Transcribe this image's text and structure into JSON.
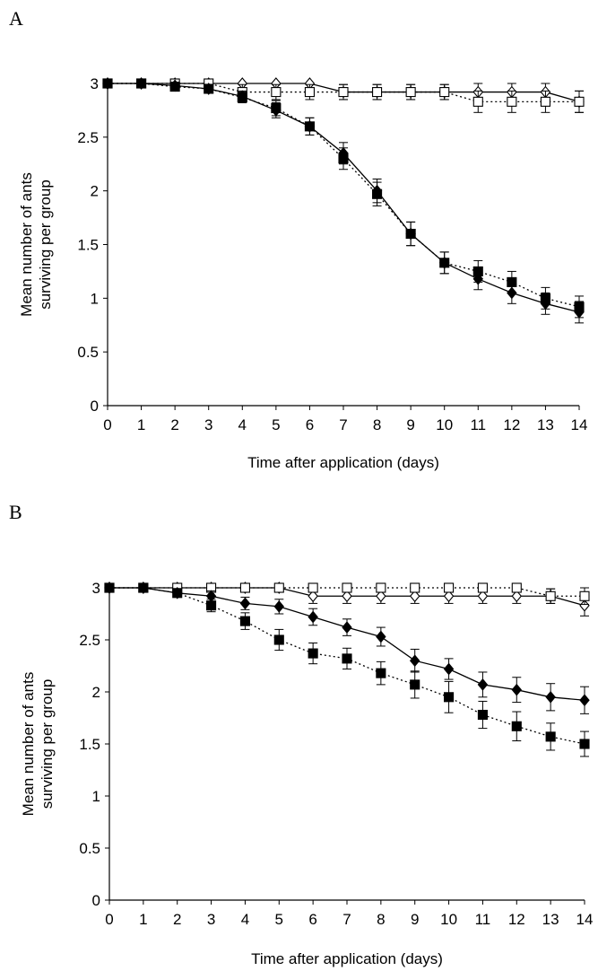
{
  "chart_data": [
    {
      "panel": "A",
      "type": "line",
      "xlabel": "Time after application (days)",
      "ylabel": [
        "Mean number of ants",
        "surviving per group"
      ],
      "xlim": [
        0,
        14
      ],
      "ylim": [
        0,
        3
      ],
      "x_ticks": [
        0,
        1,
        2,
        3,
        4,
        5,
        6,
        7,
        8,
        9,
        10,
        11,
        12,
        13,
        14
      ],
      "y_ticks": [
        0,
        0.5,
        1,
        1.5,
        2,
        2.5,
        3
      ],
      "grid": false,
      "x": [
        0,
        1,
        2,
        3,
        4,
        5,
        6,
        7,
        8,
        9,
        10,
        11,
        12,
        13,
        14
      ],
      "series": [
        {
          "marker": "diamond-open",
          "line": "solid",
          "values": [
            3,
            3,
            3,
            3,
            3,
            3,
            3,
            2.92,
            2.92,
            2.92,
            2.92,
            2.92,
            2.92,
            2.92,
            2.83
          ],
          "errors": [
            0,
            0,
            0,
            0,
            0,
            0,
            0,
            0.07,
            0.07,
            0.07,
            0.07,
            0.08,
            0.08,
            0.08,
            0.1
          ]
        },
        {
          "marker": "square-open",
          "line": "dotted",
          "values": [
            3,
            3,
            3,
            3,
            2.92,
            2.92,
            2.92,
            2.92,
            2.92,
            2.92,
            2.92,
            2.83,
            2.83,
            2.83,
            2.83
          ],
          "errors": [
            0,
            0,
            0,
            0,
            0.07,
            0.07,
            0.07,
            0.07,
            0.07,
            0.07,
            0.07,
            0.1,
            0.1,
            0.1,
            0.1
          ]
        },
        {
          "marker": "diamond-filled",
          "line": "solid",
          "values": [
            3,
            3,
            2.98,
            2.95,
            2.88,
            2.75,
            2.6,
            2.35,
            2,
            1.6,
            1.33,
            1.18,
            1.05,
            0.95,
            0.87
          ],
          "errors": [
            0,
            0,
            0.03,
            0.04,
            0.05,
            0.07,
            0.08,
            0.1,
            0.11,
            0.11,
            0.1,
            0.1,
            0.1,
            0.1,
            0.1
          ]
        },
        {
          "marker": "square-filled",
          "line": "dotted",
          "values": [
            3,
            3,
            2.97,
            2.95,
            2.87,
            2.77,
            2.6,
            2.3,
            1.97,
            1.6,
            1.33,
            1.25,
            1.15,
            1.0,
            0.92
          ],
          "errors": [
            0,
            0,
            0.03,
            0.04,
            0.05,
            0.07,
            0.08,
            0.1,
            0.11,
            0.11,
            0.1,
            0.1,
            0.1,
            0.1,
            0.1
          ]
        }
      ]
    },
    {
      "panel": "B",
      "type": "line",
      "xlabel": "Time after application (days)",
      "ylabel": [
        "Mean number of ants",
        "surviving per group"
      ],
      "xlim": [
        0,
        14
      ],
      "ylim": [
        0,
        3
      ],
      "x_ticks": [
        0,
        1,
        2,
        3,
        4,
        5,
        6,
        7,
        8,
        9,
        10,
        11,
        12,
        13,
        14
      ],
      "y_ticks": [
        0,
        0.5,
        1,
        1.5,
        2,
        2.5,
        3
      ],
      "grid": false,
      "x": [
        0,
        1,
        2,
        3,
        4,
        5,
        6,
        7,
        8,
        9,
        10,
        11,
        12,
        13,
        14
      ],
      "series": [
        {
          "marker": "diamond-open",
          "line": "solid",
          "values": [
            3,
            3,
            3,
            3,
            3,
            3,
            2.92,
            2.92,
            2.92,
            2.92,
            2.92,
            2.92,
            2.92,
            2.92,
            2.83
          ],
          "errors": [
            0,
            0,
            0,
            0,
            0,
            0,
            0.07,
            0.07,
            0.07,
            0.07,
            0.07,
            0.07,
            0.07,
            0.07,
            0.1
          ]
        },
        {
          "marker": "square-open",
          "line": "dotted",
          "values": [
            3,
            3,
            3,
            3,
            3,
            3,
            3,
            3,
            3,
            3,
            3,
            3,
            3,
            2.92,
            2.92
          ],
          "errors": [
            0,
            0,
            0,
            0,
            0,
            0,
            0,
            0,
            0,
            0,
            0,
            0,
            0,
            0.07,
            0.08
          ]
        },
        {
          "marker": "diamond-filled",
          "line": "solid",
          "values": [
            3,
            3,
            2.95,
            2.92,
            2.85,
            2.82,
            2.72,
            2.62,
            2.53,
            2.3,
            2.22,
            2.07,
            2.02,
            1.95,
            1.92
          ],
          "errors": [
            0,
            0,
            0.04,
            0.05,
            0.06,
            0.07,
            0.08,
            0.08,
            0.09,
            0.11,
            0.1,
            0.12,
            0.12,
            0.13,
            0.13
          ]
        },
        {
          "marker": "square-filled",
          "line": "dotted",
          "values": [
            3,
            3,
            2.95,
            2.83,
            2.68,
            2.5,
            2.37,
            2.32,
            2.18,
            2.07,
            1.95,
            1.78,
            1.67,
            1.57,
            1.5
          ],
          "errors": [
            0,
            0,
            0.04,
            0.06,
            0.08,
            0.1,
            0.1,
            0.1,
            0.11,
            0.13,
            0.15,
            0.13,
            0.14,
            0.13,
            0.12
          ]
        }
      ]
    }
  ],
  "panel_labels": {
    "a": "A",
    "b": "B"
  }
}
